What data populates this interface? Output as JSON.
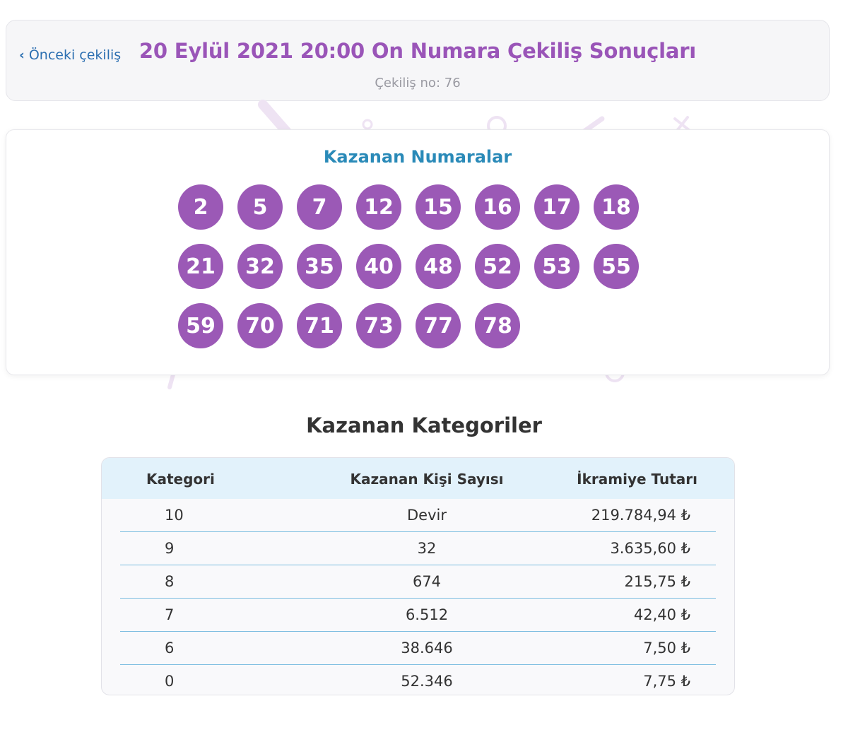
{
  "header": {
    "prev_label": "Önceki çekiliş",
    "title": "20 Eylül 2021 20:00 On Numara Çekiliş Sonuçları",
    "draw_no": "Çekiliş no: 76"
  },
  "numbers": {
    "title": "Kazanan Numaralar",
    "balls": [
      "2",
      "5",
      "7",
      "12",
      "15",
      "16",
      "17",
      "18",
      "21",
      "32",
      "35",
      "40",
      "48",
      "52",
      "53",
      "55",
      "59",
      "70",
      "71",
      "73",
      "77",
      "78"
    ]
  },
  "categories": {
    "title": "Kazanan Kategoriler",
    "columns": [
      "Kategori",
      "Kazanan Kişi Sayısı",
      "İkramiye Tutarı"
    ],
    "rows": [
      {
        "category": "10",
        "winners": "Devir",
        "prize": "219.784,94 ₺"
      },
      {
        "category": "9",
        "winners": "32",
        "prize": "3.635,60 ₺"
      },
      {
        "category": "8",
        "winners": "674",
        "prize": "215,75 ₺"
      },
      {
        "category": "7",
        "winners": "6.512",
        "prize": "42,40 ₺"
      },
      {
        "category": "6",
        "winners": "38.646",
        "prize": "7,50 ₺"
      },
      {
        "category": "0",
        "winners": "52.346",
        "prize": "7,75 ₺"
      }
    ]
  },
  "colors": {
    "accent": "#9b59b6",
    "title_blue": "#2a8ab8",
    "link": "#2c6fb1",
    "table_header_bg": "#e2f2fb"
  }
}
